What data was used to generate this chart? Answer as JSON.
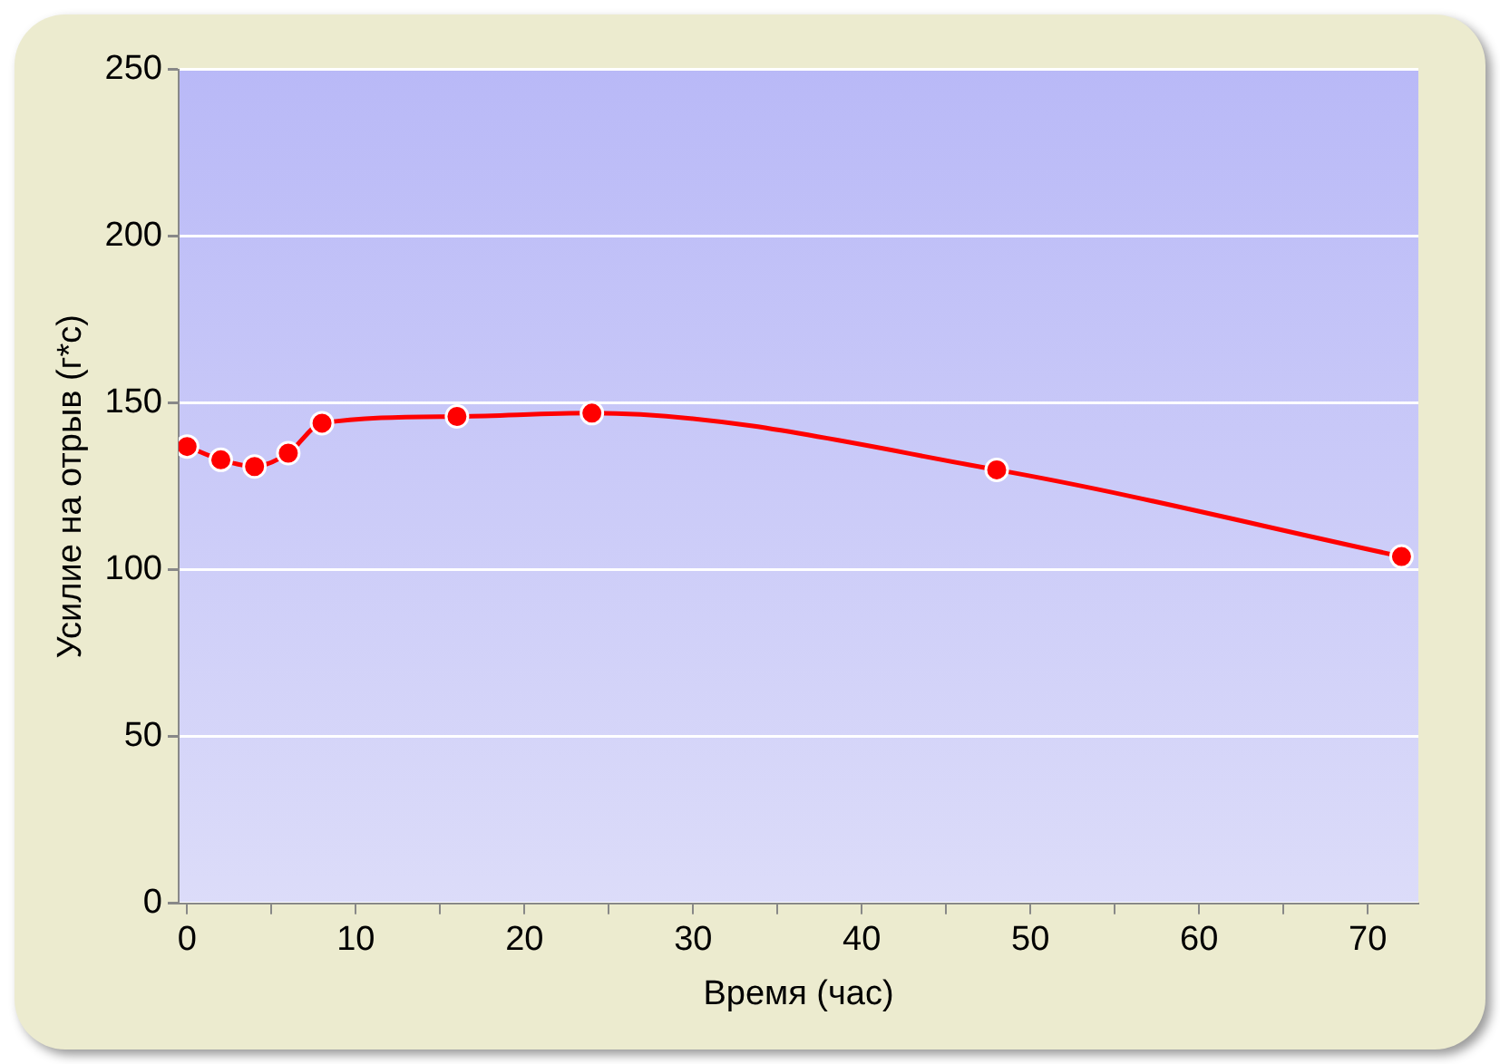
{
  "chart_data": {
    "type": "line",
    "xlabel": "Время (час)",
    "ylabel": "Усилие на отрыв (г*с)",
    "x": [
      0,
      2,
      4,
      6,
      8,
      16,
      24,
      48,
      72
    ],
    "series": [
      {
        "color": "#ff0000",
        "values": [
          137,
          133,
          131,
          135,
          144,
          146,
          147,
          130,
          104
        ]
      }
    ],
    "xlim": [
      -0.5,
      73
    ],
    "xticks": [
      0,
      {
        "value": 5,
        "label": null
      },
      10,
      {
        "value": 15,
        "label": null
      },
      20,
      {
        "value": 25,
        "label": null
      },
      30,
      {
        "value": 35,
        "label": null
      },
      40,
      {
        "value": 45,
        "label": null
      },
      50,
      {
        "value": 55,
        "label": null
      },
      60,
      {
        "value": 65,
        "label": null
      },
      70
    ],
    "ylim": [
      0,
      250
    ],
    "yticks": [
      0,
      50,
      100,
      150,
      200,
      250
    ],
    "grid": "y",
    "legend": false,
    "marker": "circle",
    "line_style": "solid"
  }
}
